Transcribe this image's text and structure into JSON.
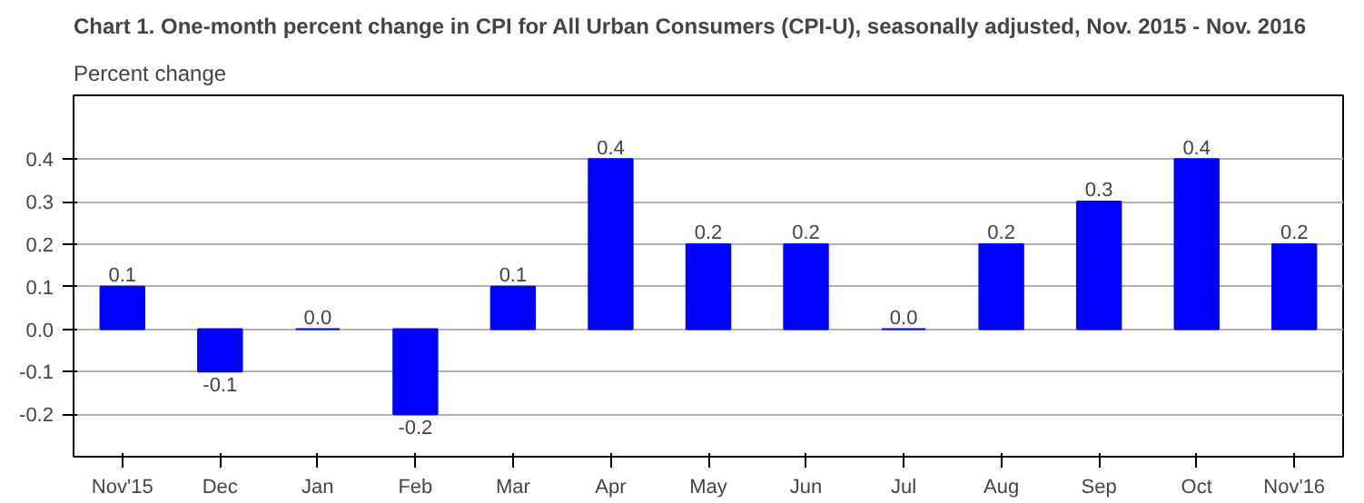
{
  "chart_data": {
    "type": "bar",
    "title": "Chart 1. One-month percent change in CPI for All Urban Consumers (CPI-U), seasonally adjusted, Nov. 2015 - Nov. 2016",
    "ylabel": "Percent change",
    "categories": [
      "Nov'15",
      "Dec",
      "Jan",
      "Feb",
      "Mar",
      "Apr",
      "May",
      "Jun",
      "Jul",
      "Aug",
      "Sep",
      "Oct",
      "Nov'16"
    ],
    "values": [
      0.1,
      -0.1,
      0.0,
      -0.2,
      0.1,
      0.4,
      0.2,
      0.2,
      0.0,
      0.2,
      0.3,
      0.4,
      0.2
    ],
    "value_labels": [
      "0.1",
      "-0.1",
      "0.0",
      "-0.2",
      "0.1",
      "0.4",
      "0.2",
      "0.2",
      "0.0",
      "0.2",
      "0.3",
      "0.4",
      "0.2"
    ],
    "color": "#0000ff",
    "ylim": [
      -0.3,
      0.55
    ],
    "yticks": [
      -0.2,
      -0.1,
      {
        "value": 0,
        "label": "0.0"
      },
      0.1,
      0.2,
      0.3,
      0.4
    ],
    "grid": "y"
  }
}
